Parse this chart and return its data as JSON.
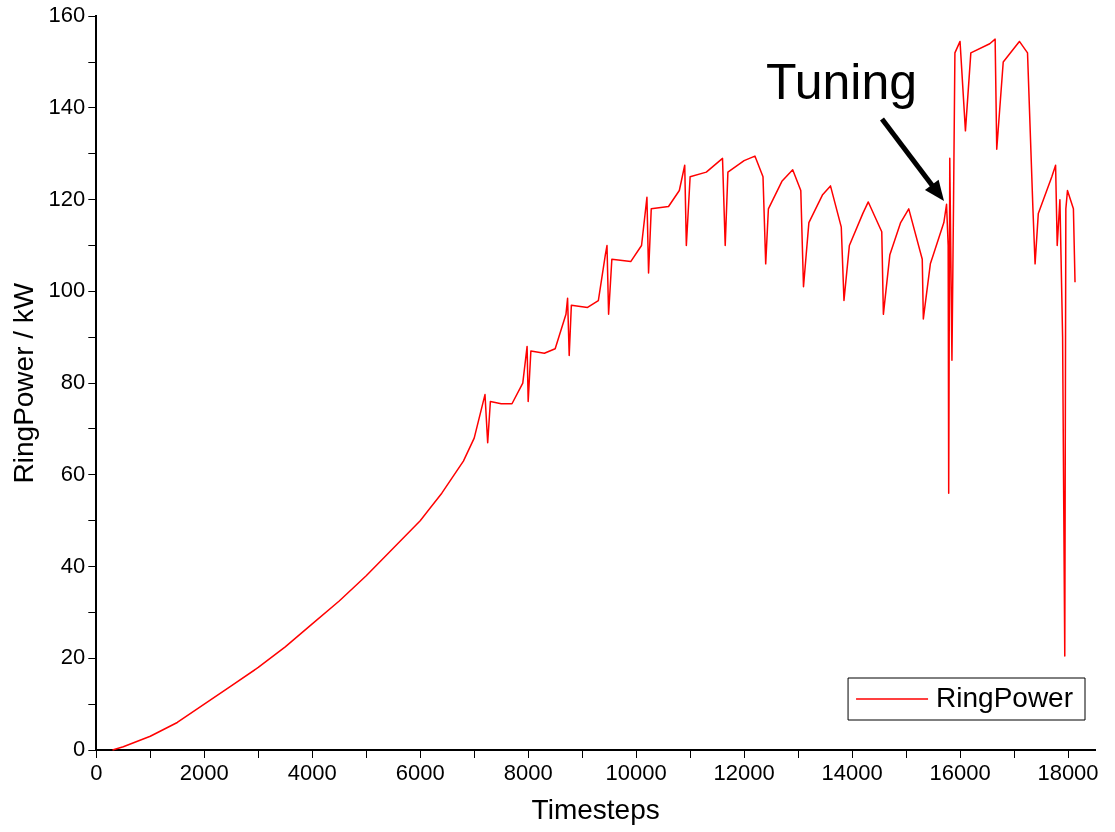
{
  "chart_data": {
    "type": "line",
    "xlabel": "Timesteps",
    "ylabel": "RingPower / kW",
    "legend": "bottom right",
    "grid": false,
    "marker": "none",
    "line_style": "solid",
    "xlim": [
      0,
      18500
    ],
    "ylim": [
      0,
      160
    ],
    "xticks": [
      0,
      {
        "value": 1000,
        "label": null
      },
      2000,
      {
        "value": 3000,
        "label": null
      },
      4000,
      {
        "value": 5000,
        "label": null
      },
      6000,
      {
        "value": 7000,
        "label": null
      },
      8000,
      {
        "value": 9000,
        "label": null
      },
      10000,
      {
        "value": 11000,
        "label": null
      },
      12000,
      {
        "value": 13000,
        "label": null
      },
      14000,
      {
        "value": 15000,
        "label": null
      },
      16000,
      {
        "value": 17000,
        "label": null
      },
      18000
    ],
    "yticks": [
      0,
      {
        "value": 10,
        "label": null
      },
      20,
      {
        "value": 30,
        "label": null
      },
      40,
      {
        "value": 50,
        "label": null
      },
      60,
      {
        "value": 70,
        "label": null
      },
      80,
      {
        "value": 90,
        "label": null
      },
      100,
      {
        "value": 110,
        "label": null
      },
      120,
      {
        "value": 130,
        "label": null
      },
      140,
      {
        "value": 150,
        "label": null
      },
      160
    ],
    "annotations": [
      {
        "text": "Tuning",
        "x": 15750,
        "y": 119
      }
    ],
    "series": [
      {
        "name": "RingPower",
        "color": "#ff0000",
        "x": [
          300,
          500,
          1000,
          1500,
          2000,
          2500,
          3000,
          3500,
          4000,
          4500,
          5000,
          5500,
          6000,
          6400,
          6800,
          7000,
          7200,
          7250,
          7300,
          7500,
          7700,
          7900,
          7980,
          8000,
          8050,
          8300,
          8500,
          8700,
          8730,
          8760,
          8800,
          9100,
          9300,
          9430,
          9460,
          9490,
          9550,
          9900,
          10100,
          10200,
          10230,
          10280,
          10600,
          10800,
          10900,
          10930,
          11000,
          11300,
          11600,
          11650,
          11700,
          12000,
          12200,
          12350,
          12400,
          12450,
          12700,
          12900,
          13050,
          13100,
          13200,
          13450,
          13600,
          13800,
          13850,
          13950,
          14200,
          14300,
          14550,
          14580,
          14700,
          14900,
          15050,
          15300,
          15320,
          15450,
          15700,
          15750,
          15780,
          15790,
          15810,
          15850,
          15880,
          15905,
          16000,
          16100,
          16200,
          16550,
          16650,
          16680,
          16800,
          17100,
          17250,
          17350,
          17390,
          17450,
          17700,
          17770,
          17800,
          17850,
          17900,
          17940,
          17960,
          17990,
          18100,
          18130
        ],
        "values": [
          0,
          0.7,
          3,
          6,
          10,
          14,
          18,
          22.5,
          27.5,
          32.5,
          38,
          44,
          50,
          56,
          63,
          68,
          77.5,
          67,
          76,
          75.5,
          75.5,
          80,
          88,
          76,
          87,
          86.5,
          87.5,
          95,
          98.5,
          86,
          97,
          96.5,
          98,
          108,
          110,
          95,
          107,
          106.5,
          110,
          120.5,
          104,
          118,
          118.5,
          122,
          127.5,
          110,
          125,
          126,
          129,
          110,
          126,
          128.5,
          129.5,
          125,
          106,
          118,
          124,
          126.5,
          122,
          101,
          115,
          121,
          123,
          114,
          98,
          110,
          117,
          119.5,
          113,
          95,
          108,
          115,
          118,
          107,
          94,
          106,
          115,
          119,
          110,
          56,
          129,
          85,
          120,
          152,
          154.5,
          135,
          152,
          154,
          155,
          131,
          150,
          154.5,
          152,
          118,
          106,
          117,
          125,
          127.5,
          110,
          120,
          90,
          20.5,
          118,
          122,
          118,
          102
        ]
      }
    ]
  }
}
